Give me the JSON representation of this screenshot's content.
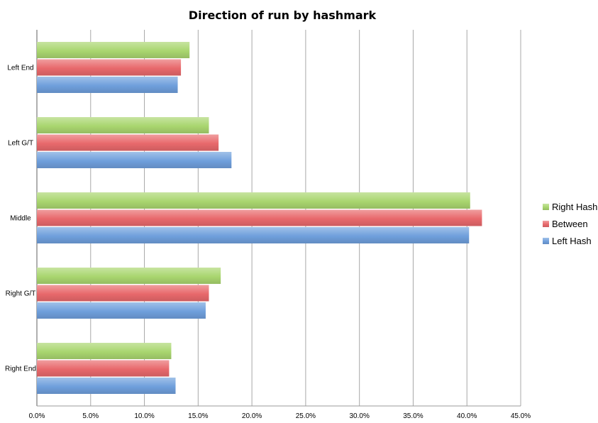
{
  "chart_data": {
    "type": "bar",
    "orientation": "horizontal",
    "title": "Direction of run by hashmark",
    "xlabel": "",
    "ylabel": "",
    "xlim": [
      0,
      45
    ],
    "xticks": [
      0,
      5,
      10,
      15,
      20,
      25,
      30,
      35,
      40,
      45
    ],
    "xtick_labels": [
      "0.0%",
      "5.0%",
      "10.0%",
      "15.0%",
      "20.0%",
      "25.0%",
      "30.0%",
      "35.0%",
      "40.0%",
      "45.0%"
    ],
    "grid": true,
    "legend_position": "right",
    "categories": [
      "Left End",
      "Left G/T",
      "Middle",
      "Right G/T",
      "Right End"
    ],
    "series": [
      {
        "name": "Right Hash",
        "color": "#a9d66f",
        "values": [
          14.2,
          16.0,
          40.3,
          17.1,
          12.5
        ]
      },
      {
        "name": "Between",
        "color": "#e8696c",
        "values": [
          13.4,
          16.9,
          41.4,
          16.0,
          12.3
        ]
      },
      {
        "name": "Left Hash",
        "color": "#6f9fdc",
        "values": [
          13.1,
          18.1,
          40.2,
          15.7,
          12.9
        ]
      }
    ]
  }
}
